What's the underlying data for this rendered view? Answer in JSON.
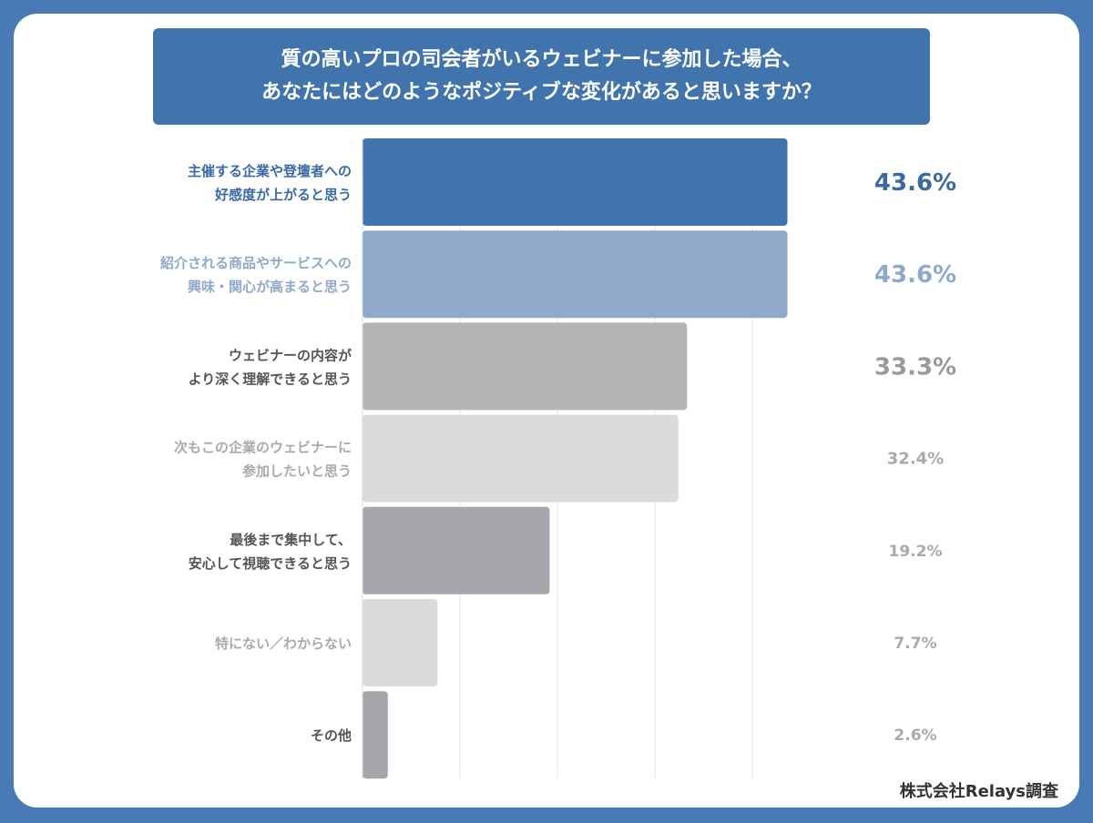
{
  "source": "株式会社Relays調査",
  "colors": {
    "background": "#4a7ab5",
    "title_bg": "#4173ad",
    "bars": [
      "#4173ad",
      "#8fa9ca",
      "#b4b3b6",
      "#dcdadd",
      "#a7a6ab",
      "#dcdadd",
      "#a7a6ab"
    ],
    "labels": [
      "#3a69a4",
      "#8fa9ca",
      "#555555",
      "#aaaaaa",
      "#555555",
      "#aaaaaa",
      "#555555"
    ],
    "values": [
      "#3a69a4",
      "#8fa9ca",
      "#9a9a9e",
      "#aaaaaa",
      "#aaaaaa",
      "#aaaaaa",
      "#aaaaaa"
    ]
  },
  "chart_data": {
    "type": "bar",
    "orientation": "horizontal",
    "title_lines": [
      "質の高いプロの司会者がいるウェビナーに参加した場合、",
      "あなたにはどのようなポジティブな変化があると思いますか？"
    ],
    "categories": [
      [
        "主催する企業や登壇者への",
        "好感度が上がると思う"
      ],
      [
        "紹介される商品やサービスへの",
        "興味・関心が高まると思う"
      ],
      [
        "ウェビナーの内容が",
        "より深く理解できると思う"
      ],
      [
        "次もこの企業のウェビナーに",
        "参加したいと思う"
      ],
      [
        "最後まで集中して、",
        "安心して視聴できると思う"
      ],
      [
        "特にない／わからない"
      ],
      [
        "その他"
      ]
    ],
    "values": [
      43.6,
      43.6,
      33.3,
      32.4,
      19.2,
      7.7,
      2.6
    ],
    "value_labels": [
      "43.6%",
      "43.6%",
      "33.3%",
      "32.4%",
      "19.2%",
      "7.7%",
      "2.6%"
    ],
    "xlim": [
      0,
      50
    ],
    "grid": true,
    "legend": "none"
  }
}
